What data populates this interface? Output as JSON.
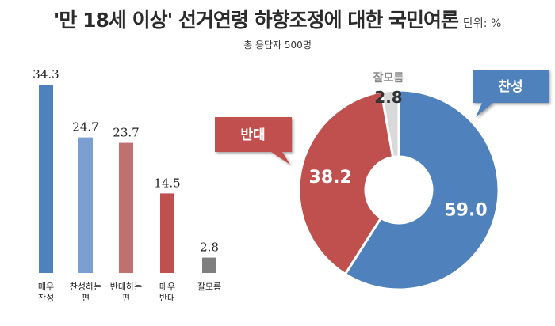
{
  "header": {
    "title": "'만 18세 이상' 선거연령 하향조정에 대한 국민여론",
    "unit": "단위: %",
    "respondents": "총 응답자 500명"
  },
  "colors": {
    "blue": "#4f81bd",
    "light_blue": "#7a9fd0",
    "rose": "#c0706f",
    "red": "#c0504d",
    "gray": "#7f7f7f",
    "light_gray": "#d9d9d9"
  },
  "chart_data": [
    {
      "type": "bar",
      "categories": [
        "매우\n찬성",
        "찬성하는\n편",
        "반대하는\n편",
        "매우\n반대",
        "잘모름"
      ],
      "values": [
        34.3,
        24.7,
        23.7,
        14.5,
        2.8
      ],
      "colors": [
        "#4f81bd",
        "#7a9fd0",
        "#c0706f",
        "#c0504d",
        "#7f7f7f"
      ],
      "ylim": [
        0,
        34.3
      ]
    },
    {
      "type": "pie",
      "style": "donut",
      "labels": [
        "찬성",
        "반대",
        "잘모름"
      ],
      "values": [
        59.0,
        38.2,
        2.8
      ],
      "colors": [
        "#4f81bd",
        "#c0504d",
        "#d9d9d9"
      ]
    }
  ]
}
